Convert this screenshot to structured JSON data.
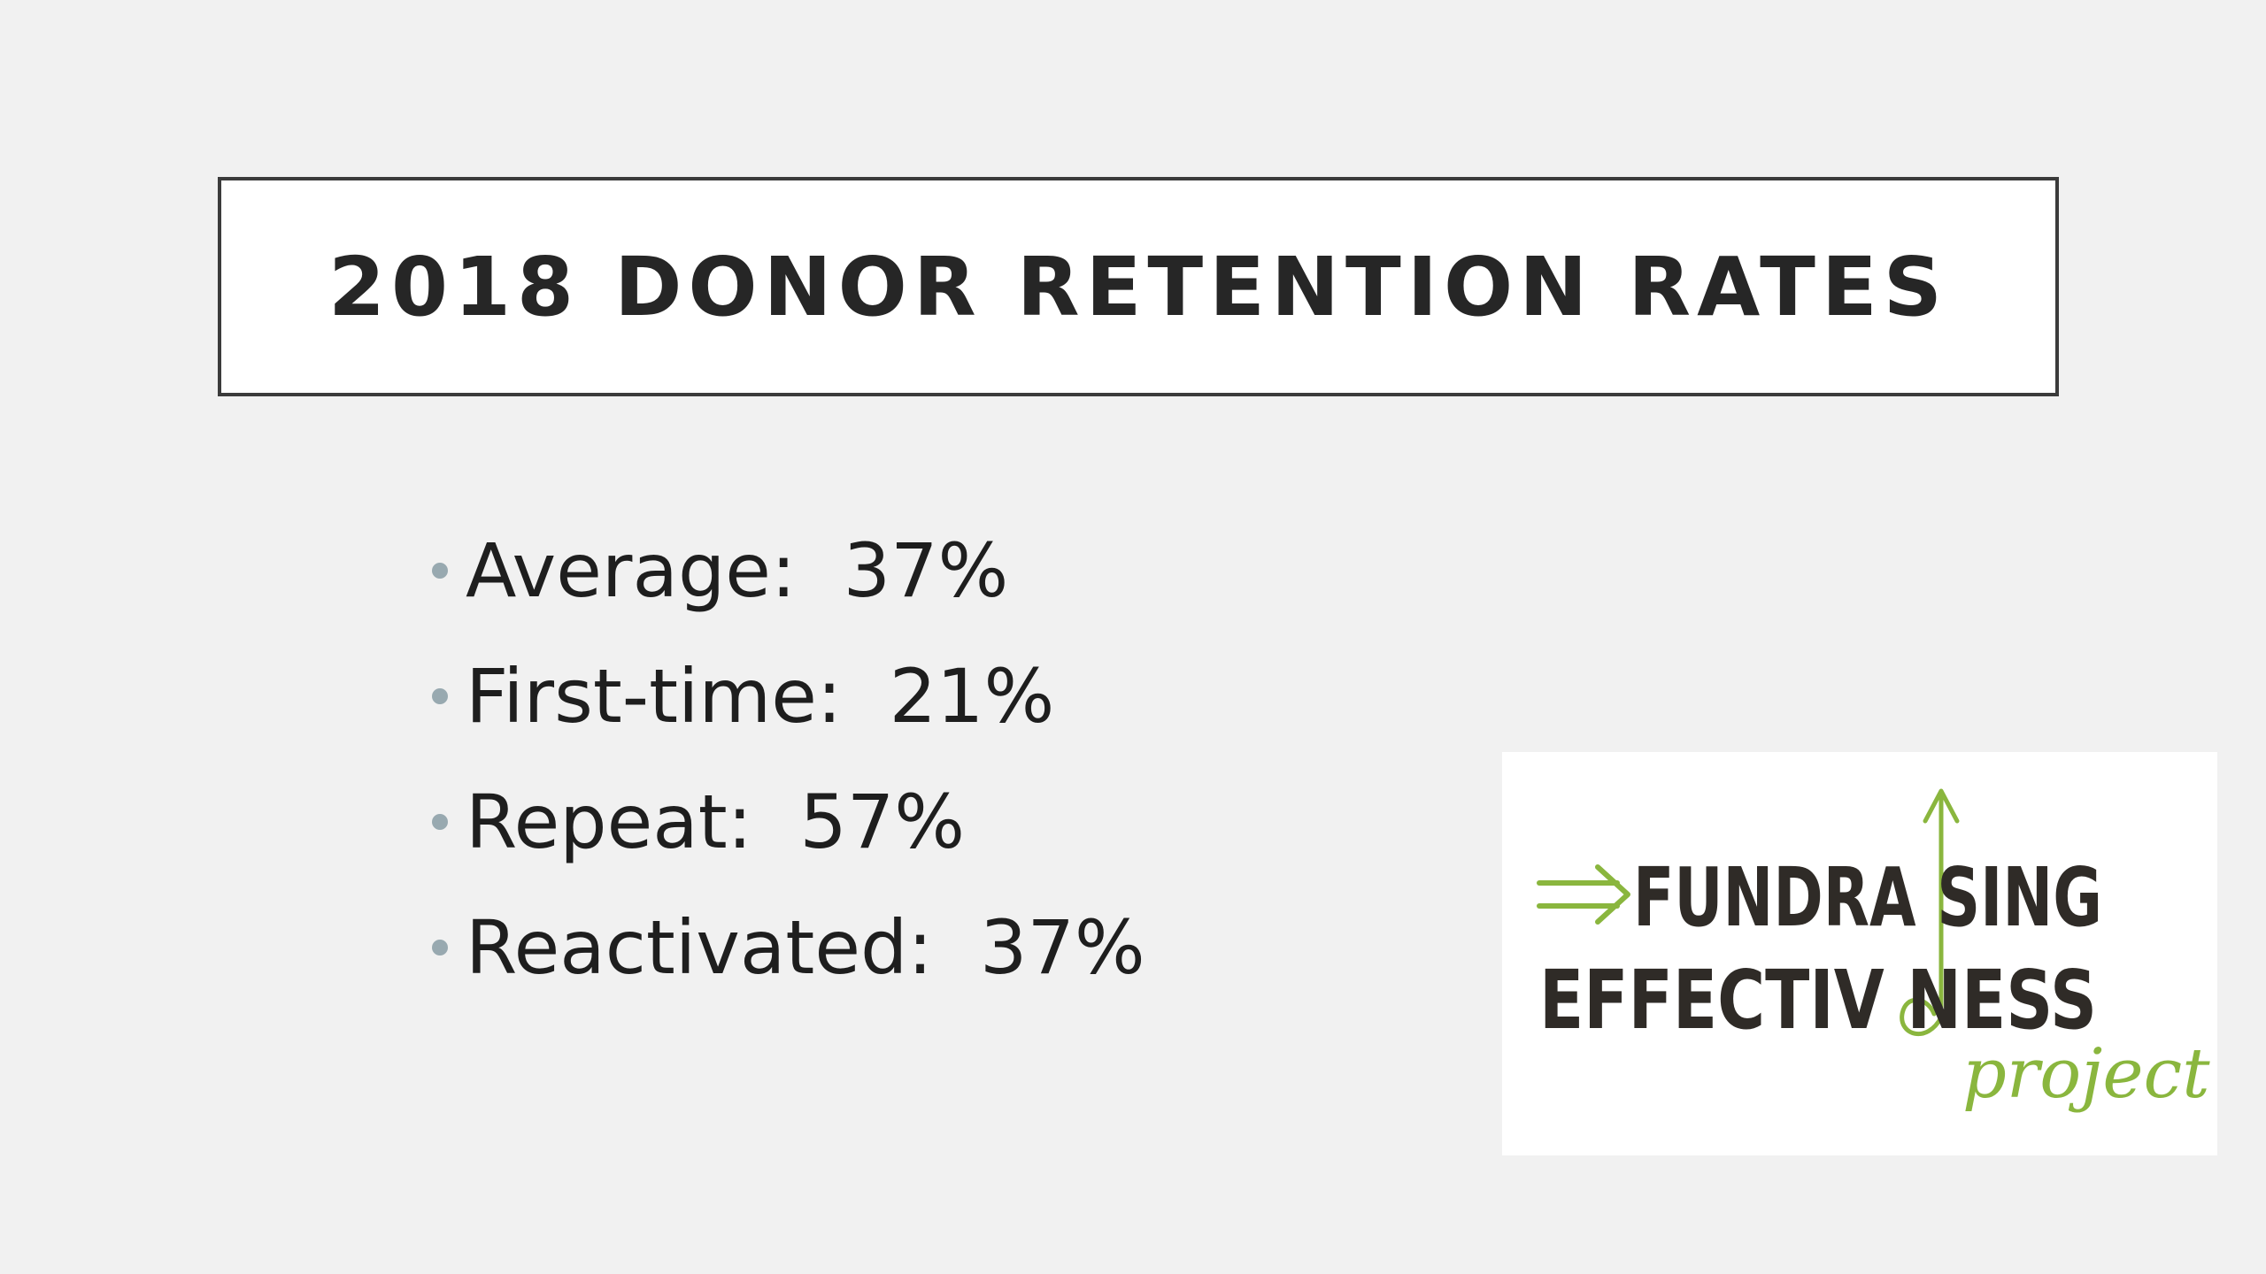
{
  "slide": {
    "title": "2018 DONOR RETENTION RATES",
    "bullets": [
      {
        "label": "Average:  37%"
      },
      {
        "label": "First-time:  21%"
      },
      {
        "label": "Repeat:  57%"
      },
      {
        "label": "Reactivated:  37%"
      }
    ],
    "logo": {
      "line1": "FUNDRA SING",
      "line2": "EFFECTIV NESS",
      "script": "project"
    }
  },
  "colors": {
    "background": "#f1f1f1",
    "title_border": "#3b3b3b",
    "bullet_dot": "#98a9b0",
    "logo_green": "#8ab63e",
    "logo_dark": "#2f2b27"
  }
}
